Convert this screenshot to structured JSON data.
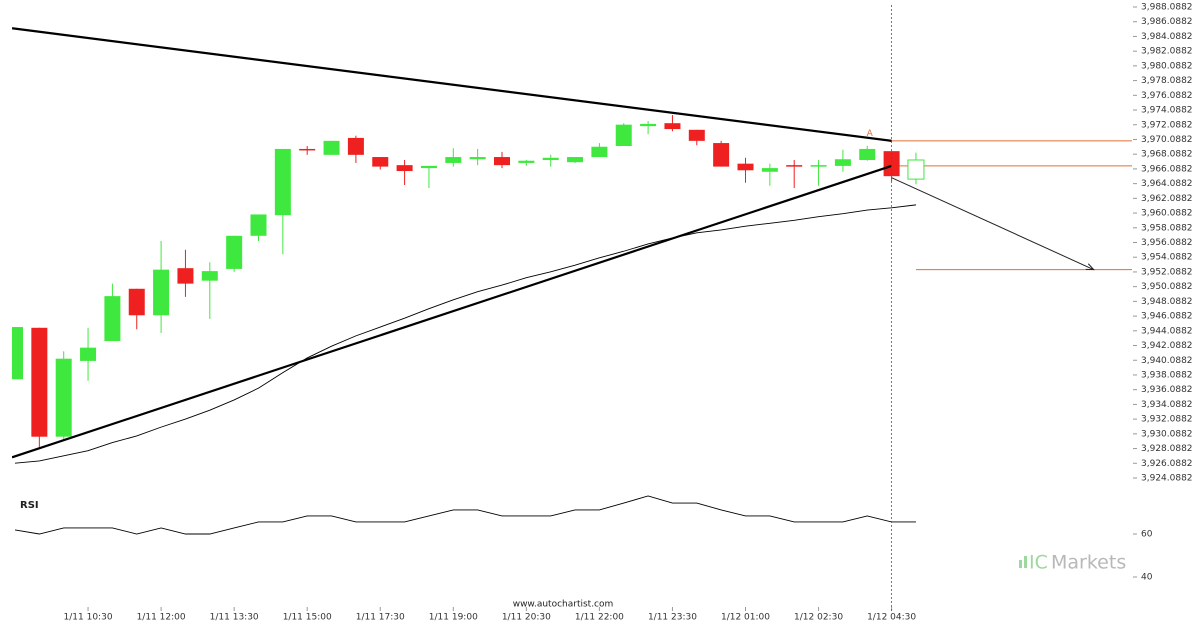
{
  "chart_data": {
    "type": "candlestick",
    "categories": [
      null,
      null,
      null,
      "1/11 10:30",
      null,
      null,
      "1/11 12:00",
      null,
      null,
      "1/11 13:30",
      null,
      null,
      "1/11 15:00",
      null,
      null,
      "1/11 17:30",
      null,
      null,
      "1/11 19:00",
      null,
      null,
      "1/11 20:30",
      null,
      null,
      "1/11 22:00",
      null,
      null,
      "1/11 23:30",
      null,
      null,
      "1/12 01:00",
      null,
      null,
      "1/12 02:30",
      null,
      null,
      "1/12 04:30",
      null
    ],
    "open": [
      3937.5,
      3944.5,
      3929.7,
      3940.0,
      3942.7,
      3949.8,
      3946.2,
      3952.6,
      3950.9,
      3952.5,
      3957.0,
      3959.8,
      3968.8,
      3968.0,
      3970.3,
      3967.7,
      3966.6,
      3966.2,
      3966.9,
      3967.4,
      3967.7,
      3966.9,
      3967.3,
      3967.0,
      3967.7,
      3969.2,
      3971.9,
      3972.3,
      3971.4,
      3969.6,
      3966.8,
      3965.7,
      3966.6,
      3966.4,
      3966.5,
      3967.3,
      3968.5,
      3964.7
    ],
    "high": [
      3944.6,
      3944.5,
      3941.3,
      3944.5,
      3950.5,
      3949.8,
      3956.3,
      3955.1,
      3953.4,
      3957.0,
      3959.9,
      3968.8,
      3969.2,
      3969.9,
      3970.6,
      3967.7,
      3967.3,
      3966.5,
      3968.9,
      3968.8,
      3968.4,
      3967.3,
      3968.0,
      3967.7,
      3969.6,
      3972.3,
      3972.6,
      3973.4,
      3971.4,
      3969.9,
      3967.6,
      3966.8,
      3967.3,
      3967.3,
      3968.7,
      3969.2,
      3968.5,
      3968.3
    ],
    "low": [
      3937.5,
      3928.2,
      3929.3,
      3937.3,
      3942.7,
      3944.3,
      3943.8,
      3948.7,
      3945.7,
      3952.1,
      3956.3,
      3954.5,
      3968.0,
      3968.0,
      3966.9,
      3966.0,
      3963.9,
      3963.5,
      3966.4,
      3966.6,
      3966.2,
      3966.5,
      3966.4,
      3966.9,
      3967.7,
      3969.2,
      3970.8,
      3971.2,
      3969.3,
      3966.4,
      3964.2,
      3963.8,
      3963.5,
      3963.8,
      3965.7,
      3967.2,
      3964.4,
      3964.0
    ],
    "close": [
      3944.6,
      3929.7,
      3940.3,
      3941.8,
      3948.8,
      3946.2,
      3952.4,
      3950.5,
      3952.2,
      3957.0,
      3959.9,
      3968.8,
      3968.7,
      3969.9,
      3968.0,
      3966.4,
      3965.8,
      3966.5,
      3967.7,
      3967.7,
      3966.6,
      3967.2,
      3967.6,
      3967.7,
      3969.1,
      3972.1,
      3972.2,
      3971.5,
      3969.9,
      3966.4,
      3965.9,
      3966.2,
      3966.5,
      3966.6,
      3967.4,
      3968.8,
      3965.1,
      3967.3
    ],
    "up_color": "#3ee83e",
    "down_color": "#ee2020",
    "live_last": true,
    "ylim": [
      3924.0882,
      3988.0882
    ],
    "yticks": [
      {
        "value": 3924.0882,
        "label": "3,924.0882"
      },
      {
        "value": 3926.0882,
        "label": "3,926.0882"
      },
      {
        "value": 3928.0882,
        "label": "3,928.0882"
      },
      {
        "value": 3930.0882,
        "label": "3,930.0882"
      },
      {
        "value": 3932.0882,
        "label": "3,932.0882"
      },
      {
        "value": 3934.0882,
        "label": "3,934.0882"
      },
      {
        "value": 3936.0882,
        "label": "3,936.0882"
      },
      {
        "value": 3938.0882,
        "label": "3,938.0882"
      },
      {
        "value": 3940.0882,
        "label": "3,940.0882"
      },
      {
        "value": 3942.0882,
        "label": "3,942.0882"
      },
      {
        "value": 3944.0882,
        "label": "3,944.0882"
      },
      {
        "value": 3946.0882,
        "label": "3,946.0882"
      },
      {
        "value": 3948.0882,
        "label": "3,948.0882"
      },
      {
        "value": 3950.0882,
        "label": "3,950.0882"
      },
      {
        "value": 3952.0882,
        "label": "3,952.0882"
      },
      {
        "value": 3954.0882,
        "label": "3,954.0882"
      },
      {
        "value": 3956.0882,
        "label": "3,956.0882"
      },
      {
        "value": 3958.0882,
        "label": "3,958.0882"
      },
      {
        "value": 3960.0882,
        "label": "3,960.0882"
      },
      {
        "value": 3962.0882,
        "label": "3,962.0882"
      },
      {
        "value": 3964.0882,
        "label": "3,964.0882"
      },
      {
        "value": 3966.0882,
        "label": "3,966.0882"
      },
      {
        "value": 3968.0882,
        "label": "3,968.0882"
      },
      {
        "value": 3970.0882,
        "label": "3,970.0882"
      },
      {
        "value": 3972.0882,
        "label": "3,972.0882"
      },
      {
        "value": 3974.0882,
        "label": "3,974.0882"
      },
      {
        "value": 3976.0882,
        "label": "3,976.0882"
      },
      {
        "value": 3978.0882,
        "label": "3,978.0882"
      },
      {
        "value": 3980.0882,
        "label": "3,980.0882"
      },
      {
        "value": 3982.0882,
        "label": "3,982.0882"
      },
      {
        "value": 3984.0882,
        "label": "3,984.0882"
      },
      {
        "value": 3986.0882,
        "label": "3,986.0882"
      },
      {
        "value": 3988.0882,
        "label": "3,988.0882"
      }
    ],
    "overlay": {
      "color": "#000000",
      "values": [
        3926.1,
        3926.4,
        3927.1,
        3927.8,
        3928.9,
        3929.8,
        3931.0,
        3932.1,
        3933.3,
        3934.7,
        3936.3,
        3938.4,
        3940.4,
        3942.0,
        3943.4,
        3944.6,
        3945.8,
        3947.1,
        3948.3,
        3949.4,
        3950.3,
        3951.3,
        3952.1,
        3953.0,
        3954.0,
        3954.9,
        3955.9,
        3956.7,
        3957.4,
        3957.8,
        3958.3,
        3958.7,
        3959.1,
        3959.6,
        3960.0,
        3960.5,
        3960.8,
        3961.2
      ]
    },
    "trendlines": [
      {
        "x": [
          -0.12,
          36
        ],
        "y": [
          3985.2,
          3969.9
        ]
      },
      {
        "x": [
          -0.12,
          36
        ],
        "y": [
          3926.9,
          3966.5
        ]
      }
    ],
    "levels": [
      {
        "value": 3969.9,
        "from": 36
      },
      {
        "value": 3966.5,
        "from": 36
      },
      {
        "value": 3952.4,
        "from": 37
      }
    ],
    "level_color": "#e07030",
    "arrow": {
      "x": [
        36,
        44.3
      ],
      "y": [
        3964.9,
        3952.4
      ]
    },
    "annotation": {
      "text": "A",
      "x": 35.1,
      "y": 3970.9
    },
    "rsi": {
      "title": "RSI",
      "values": [
        61.9,
        60,
        62.8,
        62.8,
        62.8,
        60,
        62.8,
        60,
        60,
        62.8,
        65.6,
        65.6,
        68.4,
        68.4,
        65.6,
        65.6,
        65.6,
        68.4,
        71.2,
        71.2,
        68.4,
        68.4,
        68.4,
        71.2,
        71.2,
        74.4,
        77.7,
        74.4,
        74.4,
        71.2,
        68.4,
        68.4,
        65.6,
        65.6,
        65.6,
        68.4,
        65.6,
        65.6
      ],
      "ylim": [
        30,
        80
      ],
      "yticks": [
        40,
        60
      ]
    },
    "watermark": "www.autochartist.com",
    "brand": {
      "mark": "IC",
      "name": "Markets"
    }
  }
}
